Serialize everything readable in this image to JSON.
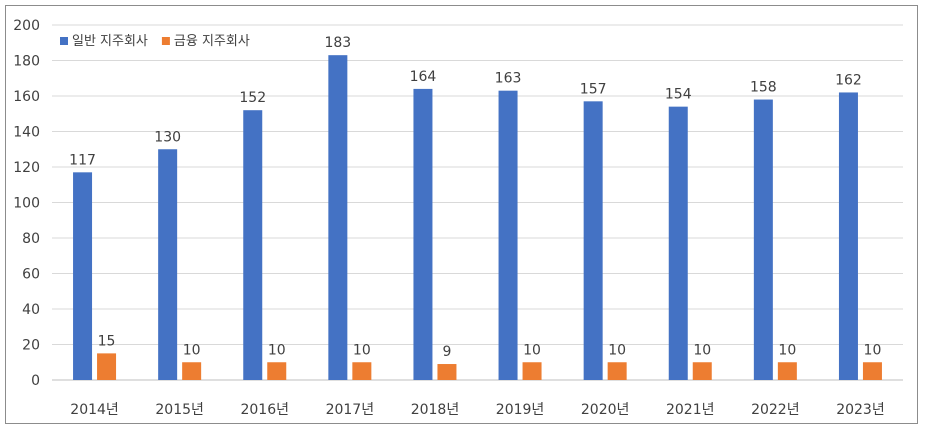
{
  "chart_data": {
    "type": "bar",
    "categories": [
      "2014년",
      "2015년",
      "2016년",
      "2017년",
      "2018년",
      "2019년",
      "2020년",
      "2021년",
      "2022년",
      "2023년"
    ],
    "series": [
      {
        "name": "일반 지주회사",
        "color": "#4472c4",
        "values": [
          117,
          130,
          152,
          183,
          164,
          163,
          157,
          154,
          158,
          162
        ]
      },
      {
        "name": "금융 지주회사",
        "color": "#ed7d31",
        "values": [
          15,
          10,
          10,
          10,
          9,
          10,
          10,
          10,
          10,
          10
        ]
      }
    ],
    "ylim": [
      0,
      200
    ],
    "yticks": [
      0,
      20,
      40,
      60,
      80,
      100,
      120,
      140,
      160,
      180,
      200
    ],
    "grid": true,
    "legend": "top-left",
    "data_labels": true,
    "title": "",
    "xlabel": "",
    "ylabel": ""
  }
}
